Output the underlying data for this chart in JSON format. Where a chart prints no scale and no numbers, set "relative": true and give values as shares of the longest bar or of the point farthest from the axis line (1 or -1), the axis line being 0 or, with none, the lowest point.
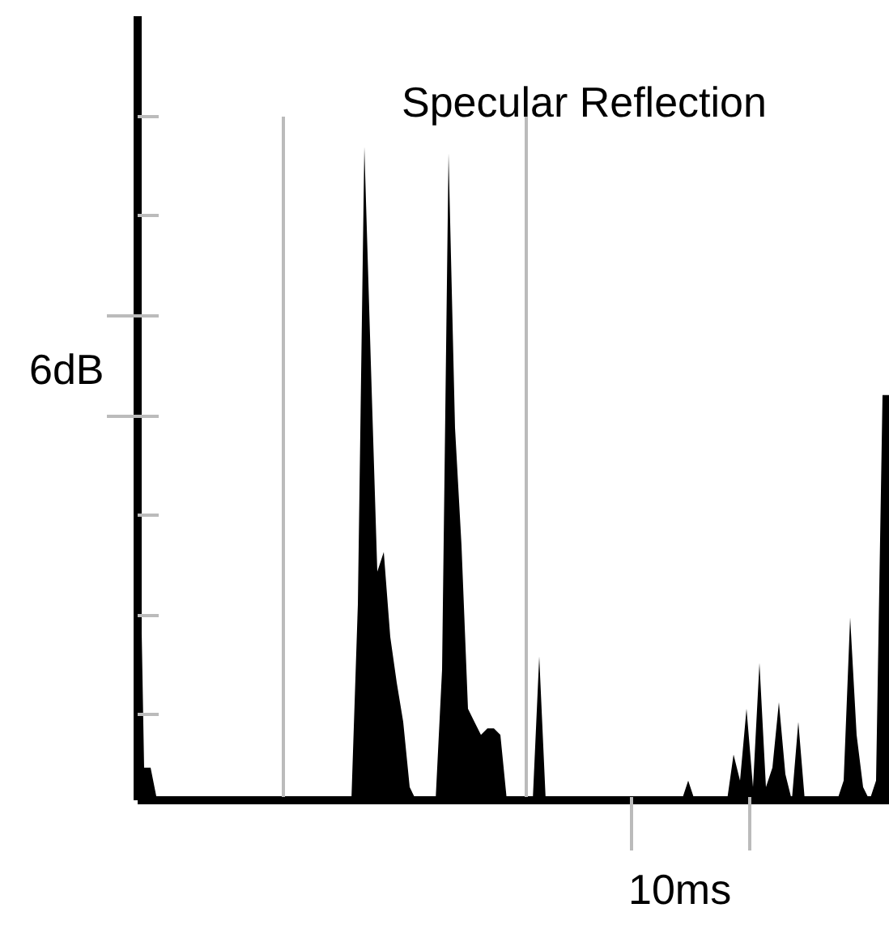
{
  "chart_data": {
    "type": "area",
    "title": "Specular Reflection",
    "xlabel": "10ms",
    "ylabel": "6dB",
    "categories": [
      null,
      null,
      null,
      null,
      null,
      null,
      null,
      null,
      null,
      null,
      null,
      null,
      null,
      null,
      null,
      null,
      null,
      null,
      null,
      null,
      null,
      null,
      null,
      null,
      null,
      null,
      null,
      null,
      null,
      null,
      null,
      null,
      null,
      null,
      null,
      null,
      null,
      null,
      null,
      null,
      null,
      null,
      null,
      null,
      null,
      null,
      null,
      null,
      null,
      null,
      null,
      null,
      null,
      null,
      null,
      null,
      null,
      null,
      null,
      null,
      null,
      null,
      null,
      null,
      null,
      null,
      null,
      null,
      null,
      null,
      null,
      null,
      null,
      null,
      null,
      null,
      null,
      null,
      null,
      null,
      null,
      null,
      null,
      null,
      null,
      null,
      null,
      null,
      null,
      null,
      null,
      null,
      null,
      null,
      null,
      null,
      null,
      null,
      null,
      null,
      null,
      null,
      null,
      null,
      null,
      null,
      null,
      null,
      null,
      null,
      null,
      null,
      null,
      null,
      null,
      null,
      null
    ],
    "series": [
      {
        "color": "#000000",
        "values": [
          0.6,
          0.05,
          0.05,
          0,
          0,
          0,
          0,
          0,
          0,
          0,
          0,
          0,
          0,
          0,
          0,
          0,
          0,
          0,
          0,
          0,
          0,
          0,
          0,
          0,
          0,
          0,
          0,
          0,
          0,
          0,
          0,
          0,
          0,
          0,
          0.3,
          1.0,
          0.67,
          0.35,
          0.38,
          0.25,
          0.18,
          0.12,
          0.02,
          0,
          0,
          0,
          0,
          0.2,
          0.99,
          0.57,
          0.39,
          0.14,
          0.12,
          0.1,
          0.11,
          0.11,
          0.1,
          0,
          0,
          0,
          0,
          0,
          0.22,
          0,
          0,
          0,
          0,
          0,
          0,
          0,
          0,
          0,
          0,
          0,
          0,
          0,
          0,
          0,
          0,
          0,
          0,
          0,
          0,
          0,
          0,
          0.03,
          0,
          0,
          0,
          0,
          0,
          0,
          0.07,
          0.03,
          0.14,
          0.02,
          0.21,
          0.02,
          0.05,
          0.15,
          0.04,
          0,
          0.12,
          0,
          0,
          0,
          0,
          0,
          0,
          0.03,
          0.28,
          0.1,
          0.02,
          0,
          0.03,
          0.62,
          0.62
        ]
      }
    ],
    "relative": true
  }
}
